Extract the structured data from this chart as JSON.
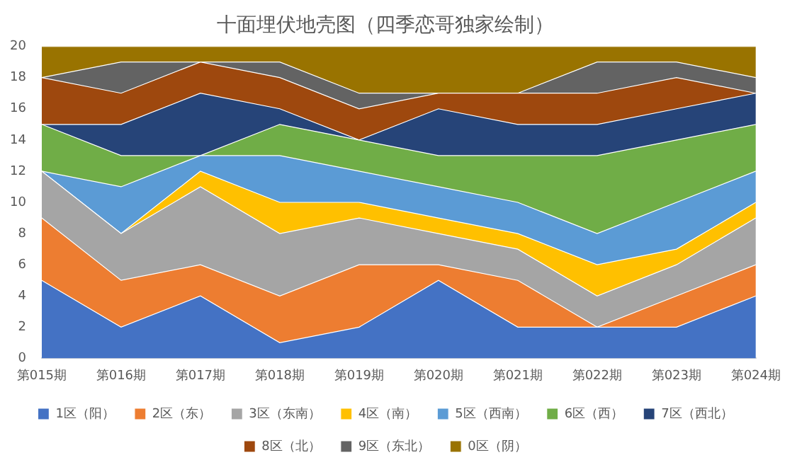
{
  "chart_data": {
    "type": "area",
    "title": "十面埋伏地壳图（四季恋哥独家绘制）",
    "stacked": true,
    "legend": "bottom",
    "categories": [
      "第015期",
      "第016期",
      "第017期",
      "第018期",
      "第019期",
      "第020期",
      "第021期",
      "第022期",
      "第023期",
      "第024期"
    ],
    "ylim": [
      0,
      20
    ],
    "yticks": [
      0,
      2,
      4,
      6,
      8,
      10,
      12,
      14,
      16,
      18,
      20
    ],
    "series": [
      {
        "name": "1区（阳）",
        "color": "#4472c4",
        "values": [
          5,
          2,
          4,
          1,
          2,
          5,
          2,
          2,
          2,
          4
        ]
      },
      {
        "name": "2区（东）",
        "color": "#ed7d31",
        "values": [
          4,
          3,
          2,
          3,
          4,
          1,
          3,
          0,
          2,
          2
        ]
      },
      {
        "name": "3区（东南）",
        "color": "#a5a5a5",
        "values": [
          3,
          3,
          5,
          4,
          3,
          2,
          2,
          2,
          2,
          3
        ]
      },
      {
        "name": "4区（南）",
        "color": "#ffc000",
        "values": [
          0,
          0,
          1,
          2,
          1,
          1,
          1,
          2,
          1,
          1
        ]
      },
      {
        "name": "5区（西南）",
        "color": "#5b9bd5",
        "values": [
          0,
          3,
          1,
          3,
          2,
          2,
          2,
          2,
          3,
          2
        ]
      },
      {
        "name": "6区（西）",
        "color": "#70ad47",
        "values": [
          3,
          2,
          0,
          2,
          2,
          2,
          3,
          5,
          4,
          3
        ]
      },
      {
        "name": "7区（西北）",
        "color": "#264478",
        "values": [
          0,
          2,
          4,
          1,
          0,
          3,
          2,
          2,
          2,
          2
        ]
      },
      {
        "name": "8区（北）",
        "color": "#9e480e",
        "values": [
          3,
          2,
          2,
          2,
          2,
          1,
          2,
          2,
          2,
          0
        ]
      },
      {
        "name": "9区（东北）",
        "color": "#636363",
        "values": [
          0,
          2,
          0,
          1,
          1,
          0,
          0,
          2,
          1,
          1
        ]
      },
      {
        "name": "0区（阴）",
        "color": "#997300",
        "values": [
          2,
          1,
          1,
          1,
          3,
          3,
          3,
          1,
          1,
          2
        ]
      }
    ]
  }
}
